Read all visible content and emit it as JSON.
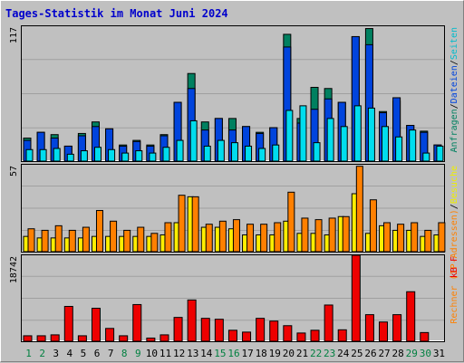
{
  "title": "Tages-Statistik im Monat Juni 2024",
  "colors": {
    "background": "#c0c0c0",
    "anfragen": "#008060",
    "dateien": "#0044dd",
    "seiten": "#00ddee",
    "rechner": "#ff8000",
    "besuche": "#ffee00",
    "kbf": "#ee0000",
    "weekend_label": "#008040"
  },
  "chart_data": [
    {
      "type": "bar",
      "panel": "top",
      "ymax_label": "117",
      "ylim": [
        0,
        117
      ],
      "legend": [
        {
          "text": "Anfragen",
          "color": "#008060"
        },
        {
          "text": "/",
          "color": "#000000"
        },
        {
          "text": "Dateien",
          "color": "#0044dd"
        },
        {
          "text": "/",
          "color": "#000000"
        },
        {
          "text": "Seiten",
          "color": "#00bbcc"
        }
      ],
      "categories": [
        "1",
        "2",
        "3",
        "4",
        "5",
        "6",
        "7",
        "8",
        "9",
        "10",
        "11",
        "12",
        "13",
        "14",
        "15",
        "16",
        "17",
        "18",
        "19",
        "20",
        "21",
        "22",
        "23",
        "24",
        "25",
        "26",
        "27",
        "28",
        "29",
        "30",
        "31"
      ],
      "series": [
        {
          "name": "Anfragen",
          "values": [
            20,
            25,
            23,
            13,
            24,
            34,
            28,
            14,
            18,
            14,
            23,
            51,
            76,
            34,
            37,
            37,
            30,
            25,
            29,
            110,
            37,
            64,
            63,
            51,
            108,
            115,
            43,
            52,
            31,
            26,
            14
          ]
        },
        {
          "name": "Dateien",
          "values": [
            18,
            25,
            20,
            13,
            22,
            30,
            28,
            13,
            17,
            13,
            22,
            51,
            63,
            27,
            37,
            27,
            30,
            24,
            29,
            99,
            33,
            45,
            54,
            51,
            108,
            101,
            42,
            55,
            31,
            25,
            14
          ]
        },
        {
          "name": "Seiten",
          "values": [
            10,
            10,
            11,
            6,
            9,
            12,
            10,
            7,
            9,
            7,
            12,
            18,
            35,
            13,
            18,
            16,
            13,
            11,
            14,
            44,
            48,
            16,
            37,
            30,
            48,
            46,
            30,
            21,
            27,
            7,
            13
          ]
        }
      ]
    },
    {
      "type": "bar",
      "panel": "middle",
      "ymax_label": "57",
      "ylim": [
        0,
        57
      ],
      "legend": [
        {
          "text": "Rechner (IP-Adressen)",
          "color": "#ff8000"
        },
        {
          "text": "/",
          "color": "#000000"
        },
        {
          "text": "Besuche",
          "color": "#eeee00"
        }
      ],
      "categories": [
        "1",
        "2",
        "3",
        "4",
        "5",
        "6",
        "7",
        "8",
        "9",
        "10",
        "11",
        "12",
        "13",
        "14",
        "15",
        "16",
        "17",
        "18",
        "19",
        "20",
        "21",
        "22",
        "23",
        "24",
        "25",
        "26",
        "27",
        "28",
        "29",
        "30",
        "31"
      ],
      "series": [
        {
          "name": "Rechner (IP-Adressen)",
          "values": [
            15,
            14,
            17,
            14,
            16,
            27,
            20,
            14,
            16,
            12,
            19,
            37,
            36,
            18,
            20,
            21,
            18,
            18,
            19,
            39,
            22,
            21,
            22,
            23,
            56,
            34,
            19,
            18,
            19,
            14,
            19
          ]
        },
        {
          "name": "Besuche",
          "values": [
            10,
            9,
            9,
            9,
            9,
            10,
            10,
            10,
            10,
            10,
            11,
            19,
            36,
            16,
            16,
            15,
            11,
            11,
            11,
            20,
            12,
            12,
            11,
            23,
            38,
            12,
            17,
            14,
            14,
            10,
            11
          ]
        }
      ]
    },
    {
      "type": "bar",
      "panel": "bottom",
      "ymax_label": "18742",
      "ylim": [
        0,
        18742
      ],
      "legend": [
        {
          "text": "kB F",
          "color": "#ee0000"
        }
      ],
      "categories": [
        "1",
        "2",
        "3",
        "4",
        "5",
        "6",
        "7",
        "8",
        "9",
        "10",
        "11",
        "12",
        "13",
        "14",
        "15",
        "16",
        "17",
        "18",
        "19",
        "20",
        "21",
        "22",
        "23",
        "24",
        "25",
        "26",
        "27",
        "28",
        "29",
        "30",
        "31"
      ],
      "series": [
        {
          "name": "kB F",
          "values": [
            1200,
            1200,
            1400,
            7600,
            1200,
            7200,
            2800,
            1200,
            8000,
            700,
            1400,
            5200,
            9000,
            5000,
            4800,
            2400,
            2000,
            5000,
            4400,
            3400,
            1800,
            2400,
            7900,
            2500,
            18742,
            5800,
            4200,
            5800,
            10800,
            1900,
            0
          ]
        }
      ]
    }
  ],
  "day_labels": [
    "1",
    "2",
    "3",
    "4",
    "5",
    "6",
    "7",
    "8",
    "9",
    "10",
    "11",
    "12",
    "13",
    "14",
    "15",
    "16",
    "17",
    "18",
    "19",
    "20",
    "21",
    "22",
    "23",
    "24",
    "25",
    "26",
    "27",
    "28",
    "29",
    "30",
    "31"
  ],
  "weekend_days": [
    "1",
    "2",
    "8",
    "9",
    "15",
    "16",
    "22",
    "23",
    "29",
    "30"
  ]
}
